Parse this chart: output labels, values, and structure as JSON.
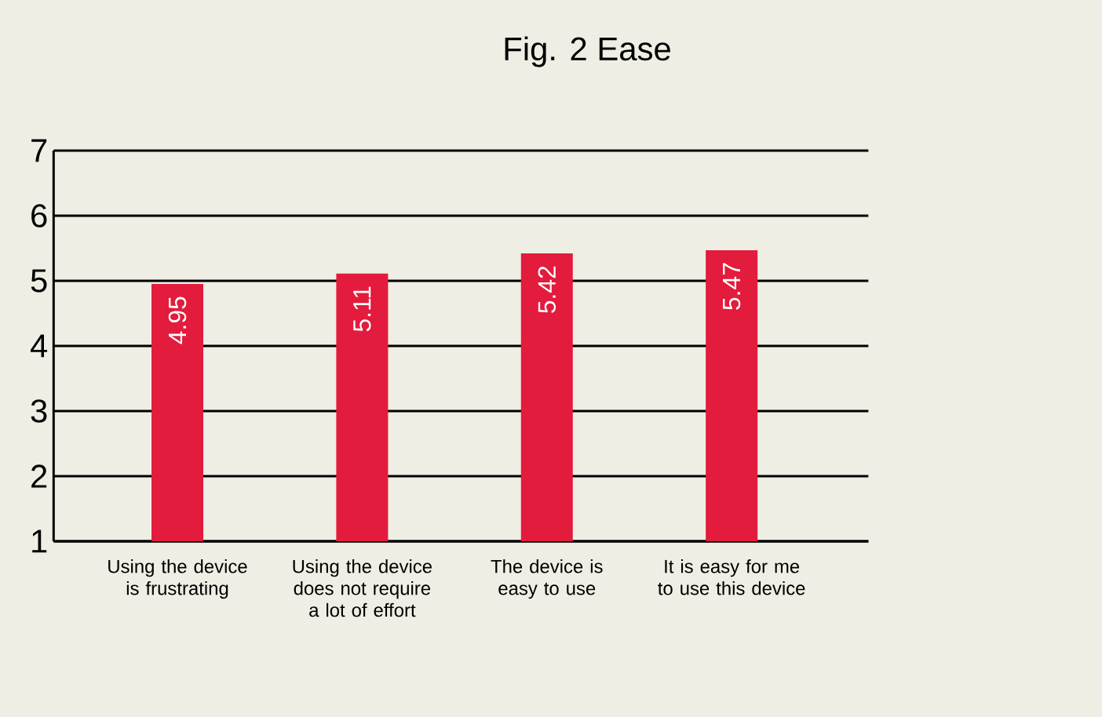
{
  "chart_data": {
    "type": "bar",
    "title": "Fig. 2 Ease",
    "categories": [
      "Using the device is frustrating",
      "Using the device does not require a lot of effort",
      "The device is easy to use",
      "It is easy for me to use this device"
    ],
    "values": [
      4.95,
      5.11,
      5.42,
      5.47
    ],
    "color": "#e31b3c",
    "ylim": [
      1,
      7
    ],
    "yticks": [
      1,
      2,
      3,
      4,
      5,
      6,
      7
    ],
    "grid": "y",
    "data_labels": true
  }
}
